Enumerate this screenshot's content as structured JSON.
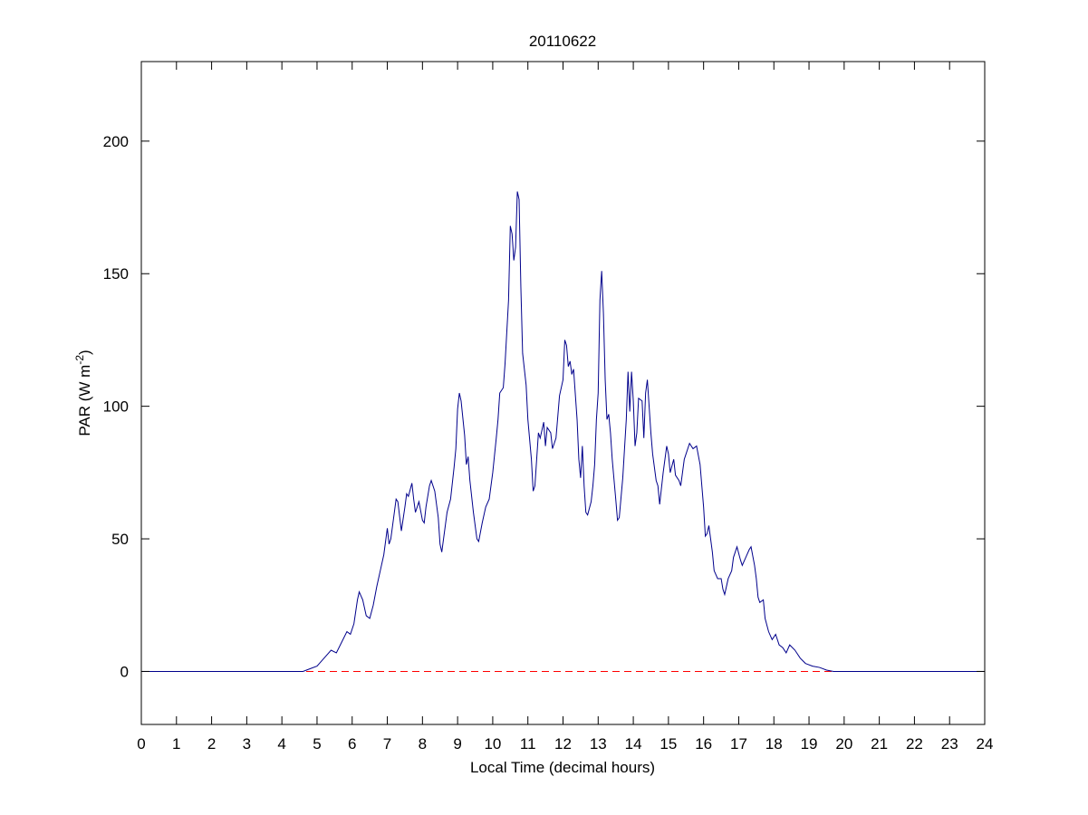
{
  "chart_data": {
    "type": "line",
    "title": "20110622",
    "xlabel": "Local Time (decimal hours)",
    "ylabel": [
      "PAR (W m",
      "-2",
      ")"
    ],
    "xlim": [
      0,
      24
    ],
    "ylim": [
      -20,
      230
    ],
    "xticks": [
      0,
      1,
      2,
      3,
      4,
      5,
      6,
      7,
      8,
      9,
      10,
      11,
      12,
      13,
      14,
      15,
      16,
      17,
      18,
      19,
      20,
      21,
      22,
      23,
      24
    ],
    "yticks": [
      0,
      50,
      100,
      150,
      200
    ],
    "hline": {
      "value": 0,
      "color": "#ff0000",
      "style": "dashed"
    },
    "x": [
      0,
      4.6,
      4.8,
      5.0,
      5.2,
      5.4,
      5.55,
      5.7,
      5.85,
      5.95,
      6.05,
      6.15,
      6.2,
      6.3,
      6.4,
      6.5,
      6.6,
      6.7,
      6.8,
      6.9,
      7.0,
      7.05,
      7.1,
      7.2,
      7.25,
      7.3,
      7.4,
      7.5,
      7.55,
      7.6,
      7.7,
      7.75,
      7.8,
      7.9,
      8.0,
      8.05,
      8.1,
      8.2,
      8.25,
      8.35,
      8.45,
      8.5,
      8.55,
      8.65,
      8.7,
      8.8,
      8.9,
      8.95,
      9.0,
      9.05,
      9.1,
      9.2,
      9.25,
      9.3,
      9.35,
      9.45,
      9.55,
      9.6,
      9.7,
      9.8,
      9.9,
      10.0,
      10.1,
      10.15,
      10.2,
      10.3,
      10.35,
      10.45,
      10.5,
      10.55,
      10.6,
      10.65,
      10.7,
      10.75,
      10.8,
      10.85,
      10.95,
      11.0,
      11.1,
      11.15,
      11.2,
      11.3,
      11.35,
      11.45,
      11.5,
      11.55,
      11.65,
      11.7,
      11.8,
      11.9,
      12.0,
      12.05,
      12.1,
      12.15,
      12.2,
      12.25,
      12.3,
      12.4,
      12.45,
      12.5,
      12.55,
      12.6,
      12.65,
      12.7,
      12.8,
      12.85,
      12.9,
      12.95,
      13.0,
      13.05,
      13.1,
      13.15,
      13.2,
      13.25,
      13.3,
      13.35,
      13.4,
      13.5,
      13.55,
      13.6,
      13.7,
      13.8,
      13.85,
      13.9,
      13.95,
      14.0,
      14.05,
      14.1,
      14.15,
      14.25,
      14.3,
      14.35,
      14.4,
      14.45,
      14.5,
      14.55,
      14.65,
      14.7,
      14.75,
      14.85,
      14.95,
      15.0,
      15.05,
      15.15,
      15.2,
      15.3,
      15.35,
      15.45,
      15.5,
      15.6,
      15.7,
      15.8,
      15.9,
      15.95,
      16.0,
      16.05,
      16.1,
      16.15,
      16.25,
      16.3,
      16.4,
      16.5,
      16.55,
      16.6,
      16.7,
      16.8,
      16.85,
      16.95,
      17.05,
      17.1,
      17.2,
      17.3,
      17.35,
      17.45,
      17.5,
      17.55,
      17.6,
      17.7,
      17.75,
      17.85,
      17.95,
      18.05,
      18.15,
      18.25,
      18.35,
      18.45,
      18.6,
      18.75,
      18.9,
      19.1,
      19.3,
      19.5,
      19.7,
      24
    ],
    "series": [
      {
        "color": "#00008b",
        "values": [
          0,
          0,
          1,
          2,
          5,
          8,
          7,
          11,
          15,
          14,
          18,
          27,
          30,
          27,
          21,
          20,
          25,
          32,
          38,
          44,
          54,
          48,
          50,
          60,
          65,
          64,
          53,
          62,
          67,
          66,
          71,
          65,
          60,
          64,
          57,
          56,
          62,
          70,
          72,
          68,
          58,
          48,
          45,
          55,
          60,
          65,
          77,
          84,
          99,
          105,
          102,
          89,
          78,
          81,
          72,
          60,
          50,
          49,
          56,
          62,
          65,
          75,
          88,
          95,
          105,
          107,
          116,
          140,
          168,
          165,
          155,
          160,
          181,
          178,
          145,
          120,
          108,
          95,
          80,
          68,
          70,
          90,
          88,
          94,
          85,
          92,
          90,
          84,
          88,
          104,
          110,
          125,
          123,
          115,
          117,
          112,
          114,
          95,
          80,
          73,
          85,
          70,
          60,
          59,
          64,
          70,
          78,
          95,
          105,
          140,
          151,
          135,
          110,
          95,
          97,
          90,
          80,
          65,
          57,
          58,
          73,
          95,
          113,
          98,
          113,
          102,
          85,
          90,
          103,
          102,
          88,
          105,
          110,
          100,
          90,
          82,
          72,
          70,
          63,
          75,
          85,
          82,
          75,
          80,
          74,
          72,
          70,
          80,
          82,
          86,
          84,
          85,
          78,
          70,
          62,
          51,
          52,
          55,
          45,
          38,
          35,
          35,
          31,
          29,
          35,
          38,
          43,
          47,
          42,
          40,
          43,
          46,
          47,
          40,
          35,
          28,
          26,
          27,
          20,
          15,
          12,
          14,
          10,
          9,
          7,
          10,
          8,
          5,
          3,
          2,
          1.5,
          0.5,
          0,
          0
        ]
      }
    ]
  }
}
